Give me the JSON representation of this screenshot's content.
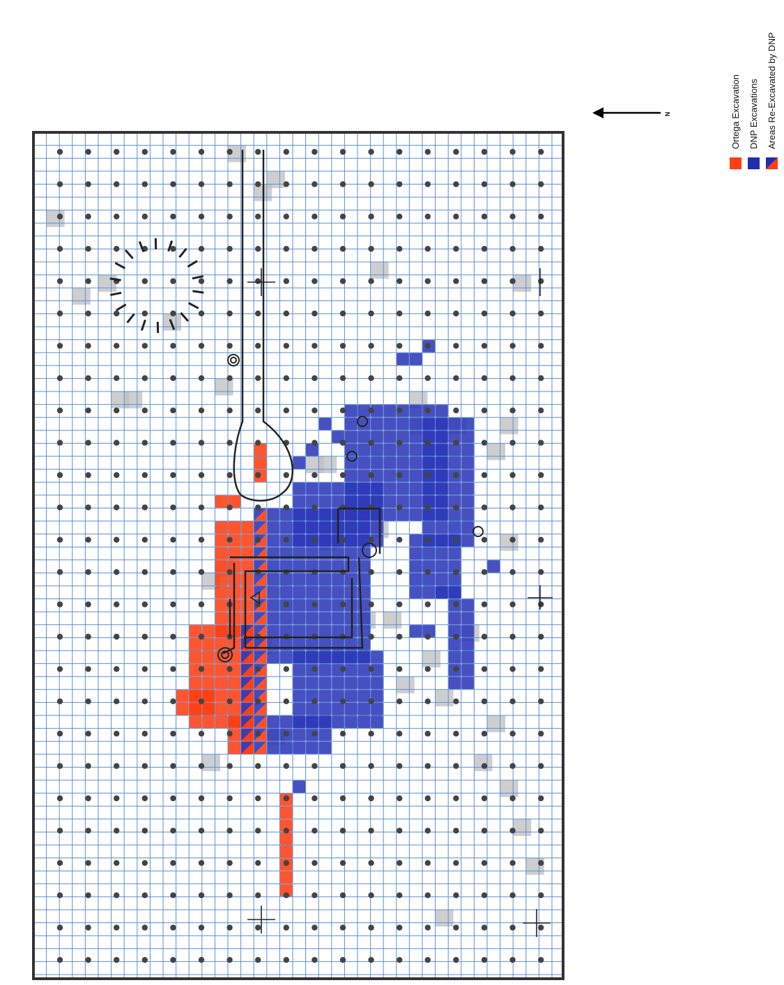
{
  "north_label": "N",
  "legend": [
    {
      "label": "Ortega Excavation",
      "color": "#ff3d12",
      "pattern": "solid"
    },
    {
      "label": "DNP Excavations",
      "color": "#1f2db0",
      "pattern": "solid"
    },
    {
      "label": "Areas Re-Excavated by DNP",
      "color": "#1f2db0",
      "color2": "#ff3d12",
      "pattern": "diagonal-split"
    }
  ],
  "colors": {
    "grid_line": "#5a8fd6",
    "ortega": "#ff3d12",
    "dnp": "#2d38b8",
    "frame": "#333333",
    "survey_dot": "#444444",
    "shading": "#bdbdbd"
  },
  "icons": [
    "north-arrow-icon",
    "datum-crosshair-icon",
    "stone-circle-icon"
  ]
}
